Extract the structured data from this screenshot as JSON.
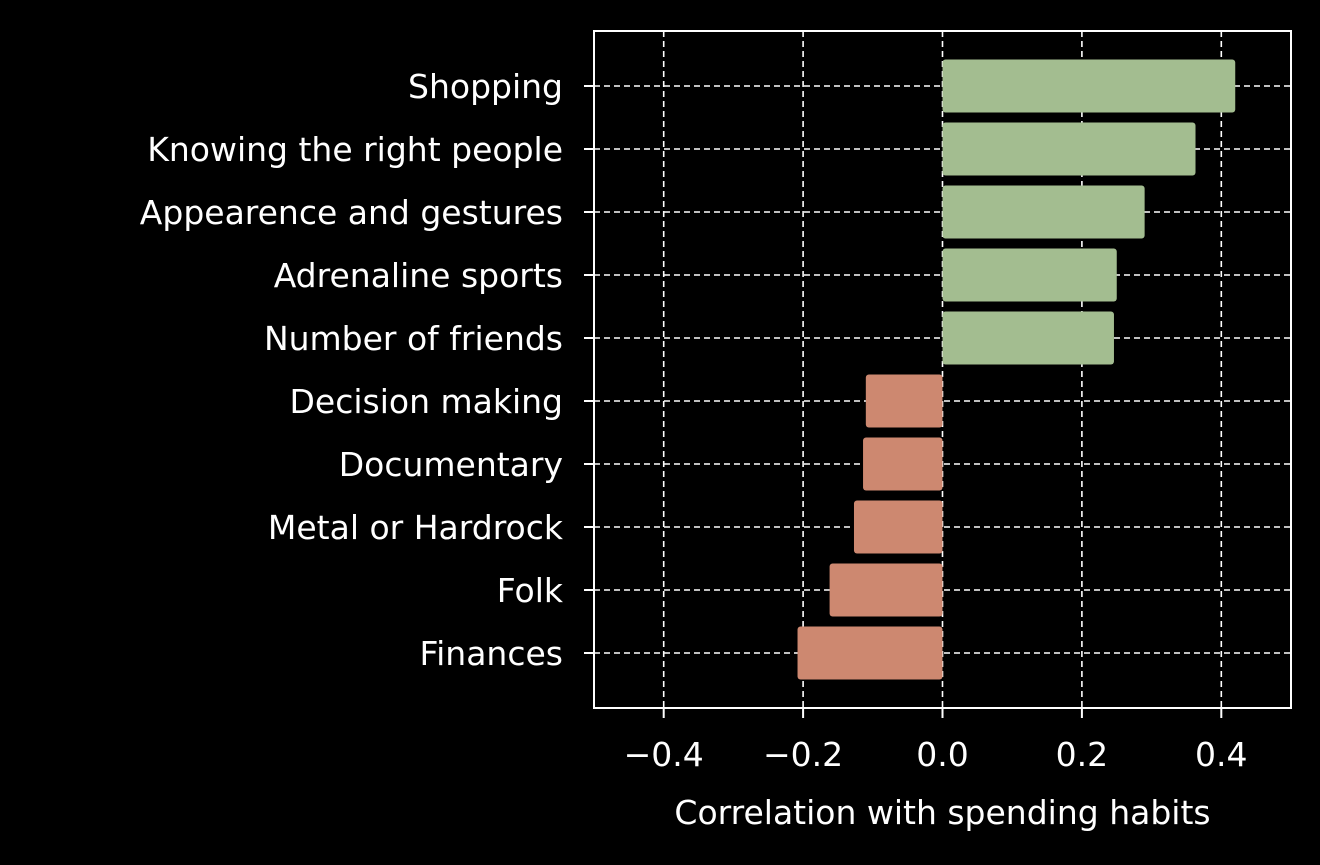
{
  "chart_data": {
    "type": "bar",
    "orientation": "horizontal",
    "title": "",
    "xlabel": "Correlation with spending habits",
    "ylabel": "",
    "xlim": [
      -0.5,
      0.5
    ],
    "xticks": [
      -0.4,
      -0.2,
      0.0,
      0.2,
      0.4
    ],
    "xtick_labels": [
      "−0.4",
      "−0.2",
      "0.0",
      "0.2",
      "0.4"
    ],
    "grid": true,
    "categories": [
      "Shopping",
      "Knowing the right people",
      "Appearence and gestures",
      "Adrenaline sports",
      "Number of friends",
      "Decision making",
      "Documentary",
      "Metal or Hardrock",
      "Folk",
      "Finances"
    ],
    "values": [
      0.42,
      0.363,
      0.29,
      0.25,
      0.246,
      -0.11,
      -0.114,
      -0.127,
      -0.162,
      -0.208
    ],
    "colors": {
      "positive": "#a3bd90",
      "negative": "#cd8870",
      "background": "#000000",
      "foreground": "#ffffff"
    }
  }
}
